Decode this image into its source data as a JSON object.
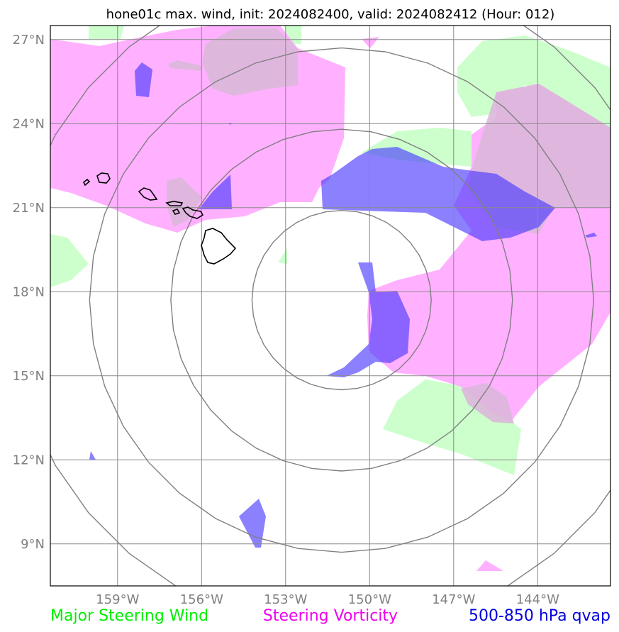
{
  "title": "hone01c max. wind, init: 2024082400, valid: 2024082412 (Hour: 012)",
  "map": {
    "lon_range": [
      -161.4,
      -141.4
    ],
    "lat_range": [
      7.5,
      27.5
    ],
    "lat_ticks": [
      {
        "value": 27,
        "label": "27°N"
      },
      {
        "value": 24,
        "label": "24°N"
      },
      {
        "value": 21,
        "label": "21°N"
      },
      {
        "value": 18,
        "label": "18°N"
      },
      {
        "value": 15,
        "label": "15°N"
      },
      {
        "value": 12,
        "label": "12°N"
      },
      {
        "value": 9,
        "label": "9°N"
      }
    ],
    "lon_ticks": [
      {
        "value": -159,
        "label": "159°W"
      },
      {
        "value": -156,
        "label": "156°W"
      },
      {
        "value": -153,
        "label": "153°W"
      },
      {
        "value": -150,
        "label": "150°W"
      },
      {
        "value": -147,
        "label": "147°W"
      },
      {
        "value": -144,
        "label": "144°W"
      }
    ],
    "gridlines": true,
    "range_ring_center": [
      -151.0,
      17.7
    ],
    "range_ring_radii_deg": [
      3.2,
      6.1,
      9.0,
      11.8
    ]
  },
  "layers": {
    "wind": {
      "color": "#ccffcc"
    },
    "vorticity": {
      "color": "#ffb0ff"
    },
    "qvap": {
      "color": "#4433ff"
    },
    "coast": {
      "color": "#000000"
    }
  },
  "legend": [
    {
      "label": "Major Steering Wind",
      "color": "#00ee00"
    },
    {
      "label": "Steering Vorticity",
      "color": "#ee00ee"
    },
    {
      "label": "500-850 hPa qvap",
      "color": "#0000dd"
    }
  ]
}
